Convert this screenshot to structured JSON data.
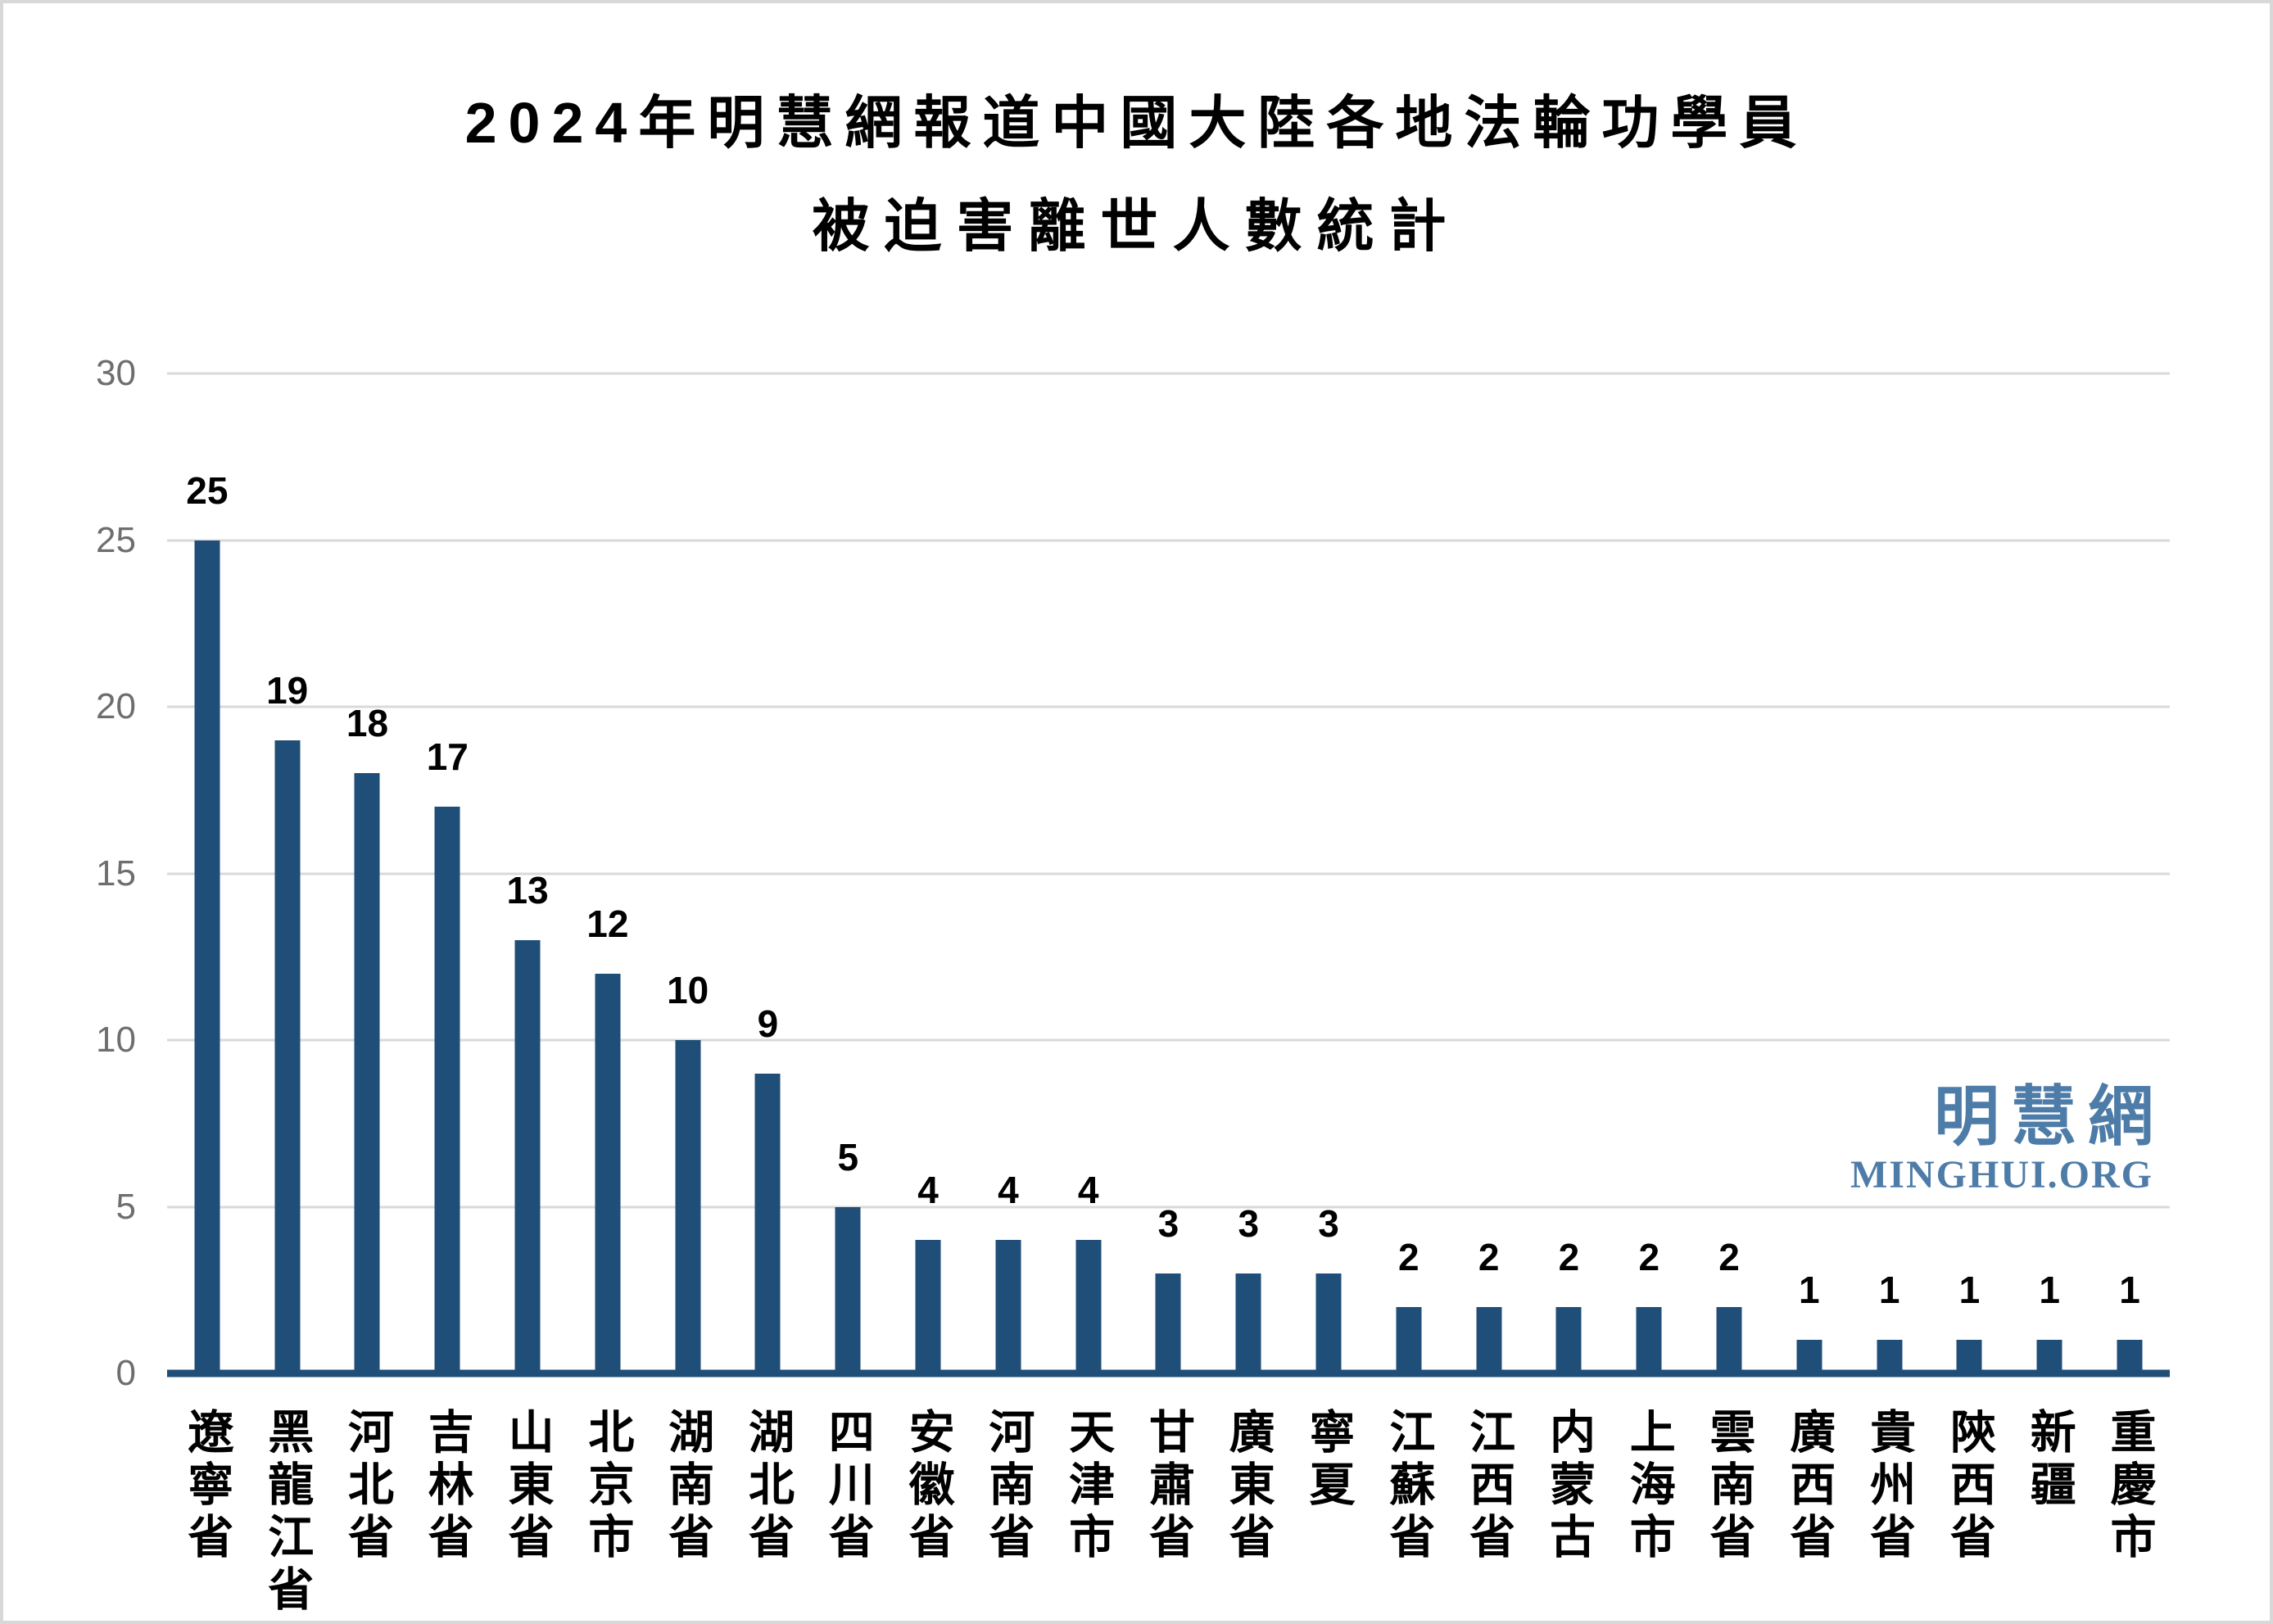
{
  "title": {
    "line1": "2024年明慧網報道中國大陸各地法輪功學員",
    "line2": "被迫害離世人數統計"
  },
  "watermark": {
    "cjk": "明慧網",
    "latin": "MINGHUI.ORG"
  },
  "chart_data": {
    "type": "bar",
    "title": "2024年明慧網報道中國大陸各地法輪功學員被迫害離世人數統計",
    "categories": [
      "遼寧省",
      "黑龍江省",
      "河北省",
      "吉林省",
      "山東省",
      "北京市",
      "湖南省",
      "湖北省",
      "四川省",
      "安徽省",
      "河南省",
      "天津市",
      "甘肅省",
      "廣東省",
      "寧夏",
      "江蘇省",
      "江西省",
      "内蒙古",
      "上海市",
      "雲南省",
      "廣西省",
      "貴州省",
      "陝西省",
      "新疆",
      "重慶市"
    ],
    "values": [
      25,
      19,
      18,
      17,
      13,
      12,
      10,
      9,
      5,
      4,
      4,
      4,
      3,
      3,
      3,
      2,
      2,
      2,
      2,
      2,
      1,
      1,
      1,
      1,
      1
    ],
    "xlabel": "",
    "ylabel": "",
    "ylim": [
      0,
      30
    ],
    "yticks": [
      30,
      25,
      20,
      15,
      10,
      5,
      0
    ],
    "grid": true,
    "legend": false,
    "colors": {
      "bar": "#1F4E79",
      "axis_line": "#1F4E79",
      "gridline": "#D9D9D9",
      "tick_label": "#6E6E6E",
      "value_label": "#000000",
      "category_label": "#000000",
      "watermark": "#4E7CA8",
      "frame_border": "#D8D8D8",
      "background": "#FFFFFF"
    }
  }
}
